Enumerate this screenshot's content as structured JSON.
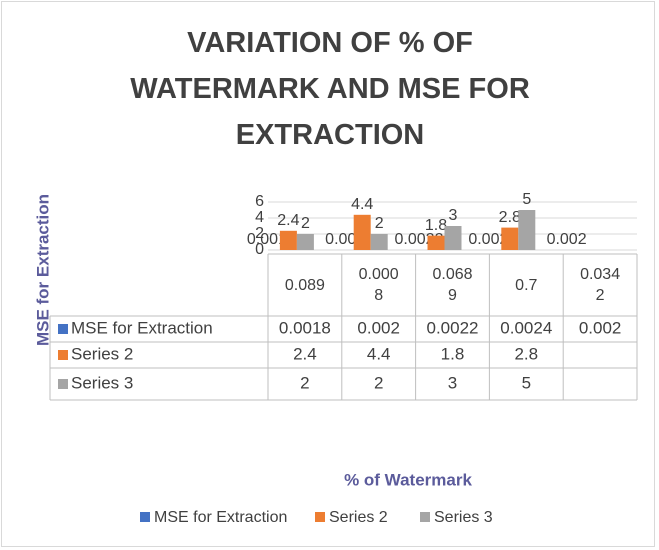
{
  "chart_data": {
    "type": "bar",
    "title": "VARIATION OF % OF WATERMARK AND MSE FOR EXTRACTION",
    "x_label": "% of Watermark",
    "y_label": "MSE for Extraction",
    "categories": [
      "0.089",
      "0.0008",
      "0.0689",
      "0.7",
      "0.0342"
    ],
    "series": [
      {
        "name": "MSE for Extraction",
        "color": "#4472c4",
        "values": [
          0.0018,
          0.002,
          0.0022,
          0.0024,
          0.002
        ]
      },
      {
        "name": "Series 2",
        "color": "#ed7d31",
        "values": [
          2.4,
          4.4,
          1.8,
          2.8,
          null
        ]
      },
      {
        "name": "Series 3",
        "color": "#a5a5a5",
        "values": [
          2,
          2,
          3,
          5,
          null
        ]
      }
    ],
    "ylim": [
      0,
      6
    ],
    "yticks": [
      0,
      2,
      4,
      6
    ],
    "grid": true,
    "legend": "bottom",
    "data_table": true
  }
}
